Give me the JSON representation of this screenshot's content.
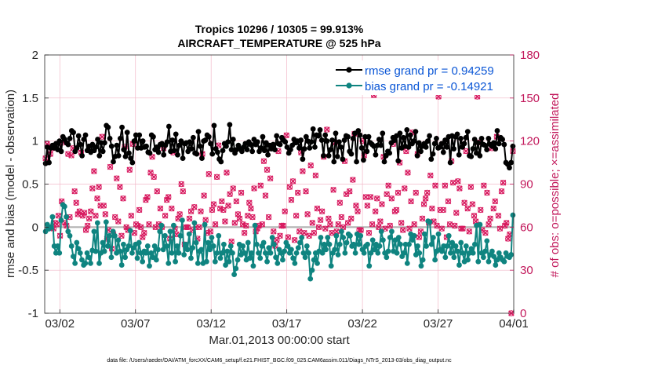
{
  "chart_data": {
    "type": "line",
    "title_line1": "Tropics 10296 / 10305 = 99.913%",
    "title_line2": "AIRCRAFT_TEMPERATURE @ 525 hPa",
    "xlabel": "Mar.01,2013 00:00:00 start",
    "ylabel_left": "rmse and bias (model - observation)",
    "ylabel_right": "# of obs: o=possible; ×=assimilated",
    "xlim": [
      0,
      31
    ],
    "ylim_left": [
      -1,
      2
    ],
    "ylim_right": [
      0,
      180
    ],
    "x_ticks": [
      {
        "v": 1,
        "label": "03/02"
      },
      {
        "v": 6,
        "label": "03/07"
      },
      {
        "v": 11,
        "label": "03/12"
      },
      {
        "v": 16,
        "label": "03/17"
      },
      {
        "v": 21,
        "label": "03/22"
      },
      {
        "v": 26,
        "label": "03/27"
      },
      {
        "v": 31,
        "label": "04/01"
      }
    ],
    "y_ticks_left": [
      {
        "v": -1,
        "label": "-1"
      },
      {
        "v": -0.5,
        "label": "-0.5"
      },
      {
        "v": 0,
        "label": "0"
      },
      {
        "v": 0.5,
        "label": "0.5"
      },
      {
        "v": 1,
        "label": "1"
      },
      {
        "v": 1.5,
        "label": "1.5"
      },
      {
        "v": 2,
        "label": "2"
      }
    ],
    "y_ticks_right": [
      {
        "v": 0,
        "label": "0"
      },
      {
        "v": 30,
        "label": "30"
      },
      {
        "v": 60,
        "label": "60"
      },
      {
        "v": 90,
        "label": "90"
      },
      {
        "v": 120,
        "label": "120"
      },
      {
        "v": 150,
        "label": "150"
      },
      {
        "v": 180,
        "label": "180"
      }
    ],
    "series": [
      {
        "name": "rmse grand pr = 0.94259",
        "color": "#000000",
        "axis": "left",
        "marker": "circle"
      },
      {
        "name": "bias grand pr = -0.14921",
        "color": "#0f8480",
        "axis": "left",
        "marker": "circle"
      }
    ],
    "rmse": [
      0.74,
      0.93,
      0.75,
      0.92,
      0.95,
      0.92,
      0.97,
      0.9,
      1.0,
      0.88,
      1.05,
      1.02,
      0.98,
      0.96,
      1.03,
      1.12,
      1.1,
      0.88,
      0.92,
      1.06,
      0.96,
      0.83,
      1.02,
      1.07,
      0.89,
      0.94,
      0.87,
      0.96,
      0.89,
      0.93,
      1.02,
      0.83,
      0.98,
      0.88,
      0.98,
      1.18,
      1.16,
      1.03,
      0.94,
      0.76,
      0.82,
      0.95,
      0.83,
      1.03,
      1.16,
      0.9,
      0.82,
      1.1,
      0.86,
      0.8,
      0.75,
      1.0,
      1.07,
      0.92,
      1.07,
      0.92,
      1.0,
      0.93,
      0.94,
      0.87,
      0.86,
      1.07,
      1.05,
      0.9,
      0.93,
      0.87,
      0.96,
      0.97,
      0.84,
      0.95,
      0.99,
      1.17,
      0.88,
      1.01,
      0.89,
      1.08,
      0.84,
      0.95,
      1.0,
      0.8,
      0.97,
      0.98,
      0.88,
      0.99,
      0.91,
      1.04,
      0.86,
      0.85,
      1.11,
      0.94,
      0.8,
      1.0,
      1.01,
      1.07,
      1.05,
      0.97,
      0.85,
      1.18,
      0.91,
      0.87,
      0.79,
      0.76,
      0.89,
      0.97,
      0.94,
      0.99,
      1.19,
      0.9,
      1.02,
      0.86,
      0.9,
      0.95,
      0.91,
      0.88,
      0.93,
      0.97,
      0.9,
      0.99,
      0.96,
      0.88,
      1.02,
      0.96,
      0.99,
      0.88,
      0.92,
      1.05,
      0.89,
      0.98,
      0.84,
      0.95,
      0.91,
      0.96,
      0.9,
      1.06,
      0.97,
      0.96,
      1.04,
      1.01,
      0.99,
      0.93,
      0.86,
      0.9,
      0.95,
      1.02,
      0.98,
      1.0,
      0.92,
      1.01,
      0.79,
      0.91,
      1.05,
      1.0,
      0.92,
      0.99,
      1.14,
      0.93,
      1.07,
      1.06,
      1.13,
      1.01,
      0.83,
      1.07,
      1.0,
      0.83,
      0.9,
      1.01,
      0.76,
      1.09,
      0.82,
      0.99,
      0.93,
      0.79,
      1.01,
      1.06,
      1.05,
      0.88,
      0.85,
      1.03,
      1.09,
      0.76,
      1.12,
      1.07,
      0.92,
      0.78,
      1.05,
      0.88,
      1.05,
      0.98,
      0.96,
      0.94,
      0.84,
      0.95,
      1.02,
      0.95,
      1.09,
      0.76,
      0.83,
      0.88,
      0.86,
      0.98,
      1.04,
      1.01,
      1.06,
      0.77,
      1.09,
      0.92,
      1.04,
      0.94,
      1.13,
      0.93,
      1.07,
      0.97,
      1.0,
      1.11,
      0.83,
      0.98,
      0.88,
      0.94,
      0.97,
      0.93,
      1.0,
      1.06,
      0.79,
      0.85,
      0.97,
      1.03,
      0.92,
      0.93,
      0.97,
      0.87,
      1.01,
      0.93,
      1.05,
      0.75,
      1.06,
      0.91,
      1.05,
      1.08,
      0.84,
      1.03,
      0.93,
      0.97,
      1.04,
      1.11,
      0.83,
      0.82,
      0.91,
      1.02,
      0.86,
      0.98,
      0.83,
      1.03,
      0.96,
      0.95,
      0.9,
      1.03,
      0.96,
      0.94,
      0.98,
      0.91,
      1.12,
      0.97,
      1.04,
      1.02,
      0.96,
      0.75,
      0.73,
      0.69,
      0.75,
      0.94
    ],
    "bias": [
      -0.05,
      0.03,
      -0.02,
      0.0,
      0.12,
      -0.22,
      -0.3,
      -0.22,
      -0.3,
      0.08,
      0.26,
      0.24,
      0.12,
      -0.05,
      -0.1,
      -0.22,
      -0.34,
      -0.42,
      -0.18,
      -0.25,
      -0.3,
      -0.38,
      -0.44,
      -0.42,
      -0.3,
      -0.35,
      -0.42,
      -0.27,
      -0.05,
      -0.28,
      0.05,
      -0.42,
      -0.3,
      -0.18,
      -0.28,
      0.06,
      -0.22,
      -0.1,
      -0.35,
      -0.05,
      -0.1,
      -0.3,
      -0.15,
      -0.28,
      -0.44,
      -0.2,
      -0.35,
      -0.26,
      -0.22,
      -0.04,
      -0.3,
      -0.24,
      -0.2,
      -0.36,
      -0.18,
      -0.3,
      -0.4,
      -0.28,
      -0.3,
      -0.22,
      -0.45,
      -0.3,
      -0.35,
      -0.22,
      -0.38,
      -0.26,
      -0.05,
      0.02,
      -0.26,
      -0.1,
      -0.22,
      -0.42,
      -0.05,
      -0.3,
      0.02,
      -0.4,
      -0.22,
      -0.3,
      -0.1,
      0.08,
      -0.32,
      -0.2,
      -0.26,
      -0.08,
      -0.36,
      -0.24,
      0.05,
      -0.18,
      -0.42,
      -0.28,
      -0.26,
      -0.42,
      0.03,
      -0.4,
      -0.18,
      -0.26,
      -0.12,
      -0.22,
      -0.4,
      -0.3,
      -0.1,
      -0.36,
      -0.3,
      -0.2,
      -0.44,
      -0.28,
      -0.4,
      -0.22,
      -0.3,
      -0.55,
      -0.48,
      -0.38,
      -0.2,
      -0.32,
      -0.22,
      -0.3,
      -0.38,
      -0.18,
      -0.36,
      -0.3,
      -0.45,
      0.02,
      -0.2,
      -0.3,
      -0.36,
      -0.22,
      -0.18,
      -0.3,
      -0.4,
      -0.24,
      -0.3,
      -0.12,
      -0.2,
      -0.35,
      -0.42,
      -0.26,
      -0.3,
      -0.38,
      -0.28,
      -0.18,
      -0.22,
      -0.3,
      -0.26,
      -0.36,
      -0.42,
      -0.3,
      -0.24,
      -0.18,
      -0.12,
      -0.3,
      -0.35,
      -0.22,
      -0.3,
      -0.6,
      -0.5,
      -0.38,
      -0.3,
      -0.42,
      -0.28,
      -0.12,
      -0.3,
      -0.2,
      -0.26,
      -0.12,
      -0.2,
      -0.45,
      -0.3,
      -0.26,
      -0.1,
      -0.32,
      -0.2,
      -0.05,
      -0.12,
      -0.3,
      -0.18,
      -0.08,
      -0.1,
      -0.22,
      -0.2,
      -0.3,
      -0.08,
      -0.2,
      -0.1,
      -0.26,
      -0.3,
      -0.22,
      -0.2,
      -0.45,
      -0.3,
      -0.15,
      -0.26,
      -0.2,
      -0.3,
      -0.22,
      -0.05,
      -0.15,
      -0.3,
      -0.35,
      -0.28,
      -0.12,
      -0.05,
      -0.28,
      -0.15,
      -0.3,
      -0.12,
      -0.2,
      -0.34,
      -0.3,
      -0.2,
      -0.42,
      -0.2,
      -0.08,
      -0.15,
      -0.1,
      -0.32,
      -0.22,
      -0.3,
      -0.45,
      -0.38,
      -0.08,
      -0.22,
      0.07,
      0.06,
      -0.2,
      -0.12,
      -0.38,
      -0.28,
      -0.08,
      -0.26,
      -0.28,
      -0.22,
      -0.35,
      -0.22,
      -0.1,
      -0.3,
      -0.18,
      -0.35,
      -0.22,
      -0.28,
      -0.44,
      -0.18,
      -0.3,
      -0.4,
      -0.22,
      -0.38,
      -0.3,
      -0.25,
      -0.3,
      -0.2,
      0.02,
      -0.4,
      0.03,
      -0.3,
      -0.35,
      -0.28,
      -0.16,
      -0.4,
      -0.32,
      -0.28,
      -0.34,
      -0.44,
      -0.38,
      -0.3,
      -0.35,
      -0.38,
      -0.4,
      -0.3,
      -0.34,
      -0.35,
      -0.32,
      0.14
    ],
    "possible": [
      108,
      118,
      116,
      111,
      115,
      59,
      63,
      62,
      68,
      54,
      78,
      119,
      63,
      61,
      111,
      67,
      110,
      115,
      85,
      77,
      69,
      71,
      112,
      68,
      70,
      58,
      61,
      66,
      71,
      87,
      99,
      68,
      80,
      88,
      75,
      123,
      75,
      69,
      52,
      58,
      102,
      45,
      55,
      67,
      94,
      64,
      88,
      54,
      80,
      116,
      60,
      58,
      100,
      68,
      118,
      56,
      62,
      61,
      72,
      60,
      53,
      56,
      79,
      81,
      62,
      98,
      109,
      95,
      60,
      85,
      62,
      73,
      60,
      115,
      68,
      79,
      81,
      52,
      73,
      112,
      59,
      55,
      66,
      69,
      90,
      85,
      48,
      60,
      60,
      66,
      71,
      58,
      74,
      60,
      52,
      60,
      71,
      111,
      82,
      65,
      56,
      97,
      57,
      72,
      76,
      62,
      95,
      117,
      73,
      78,
      72,
      64,
      98,
      75,
      83,
      50,
      87,
      63,
      78,
      69,
      66,
      84,
      62,
      56,
      61,
      68,
      77,
      73,
      67,
      87,
      57,
      59,
      61,
      89,
      62,
      106,
      82,
      100,
      67,
      94,
      115,
      57,
      47,
      51,
      113,
      54,
      61,
      61,
      71,
      124,
      53,
      88,
      79,
      92,
      51,
      68,
      84,
      57,
      112,
      99,
      56,
      85,
      69,
      54,
      103,
      63,
      56,
      96,
      73,
      60,
      65,
      71,
      109,
      59,
      128,
      66,
      62,
      56,
      86,
      119,
      57,
      62,
      77,
      67,
      60,
      106,
      83,
      63,
      85,
      66,
      93,
      125,
      75,
      71,
      58,
      58,
      120,
      110,
      81,
      75,
      56,
      81,
      62,
      152,
      71,
      80,
      60,
      64,
      76,
      109,
      59,
      83,
      89,
      61,
      80,
      118,
      71,
      72,
      84,
      105,
      63,
      58,
      87,
      113,
      98,
      59,
      78,
      126,
      62,
      84,
      111,
      53,
      57,
      66,
      76,
      80,
      84,
      63,
      96,
      73,
      64,
      89,
      61,
      151,
      72,
      59,
      72,
      89,
      53,
      78,
      62,
      106,
      91,
      61,
      70,
      92,
      87,
      59,
      59,
      77,
      113,
      73,
      57,
      88,
      76,
      68,
      64,
      151,
      119,
      72,
      58,
      89,
      56,
      84,
      62,
      66,
      115,
      73,
      78,
      123,
      68,
      59,
      85,
      91,
      61,
      63,
      52,
      55,
      0,
      113
    ]
  }
}
